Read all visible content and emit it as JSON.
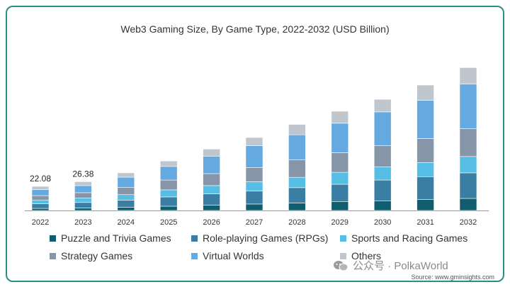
{
  "chart_data": {
    "type": "bar",
    "stacked": true,
    "title": "Web3 Gaming Size, By Game Type, 2022-2032 (USD Billion)",
    "xlabel": "",
    "ylabel": "",
    "ylim": [
      0,
      180
    ],
    "grid": false,
    "legend_position": "bottom",
    "categories": [
      "2022",
      "2023",
      "2024",
      "2025",
      "2026",
      "2027",
      "2028",
      "2029",
      "2030",
      "2031",
      "2032"
    ],
    "series": [
      {
        "name": "Puzzle and Trivia Games",
        "color": "#0f5d6e",
        "values": [
          1.9,
          2.3,
          3.0,
          3.9,
          4.8,
          5.9,
          6.9,
          8.0,
          8.9,
          10.0,
          11.0
        ]
      },
      {
        "name": "Role-playing Games (RPGs)",
        "color": "#3a7fa3",
        "values": [
          4.2,
          5.0,
          6.5,
          8.5,
          10.5,
          12.0,
          14.0,
          16.0,
          19.0,
          21.0,
          23.5
        ]
      },
      {
        "name": "Sports and Racing Games",
        "color": "#56bde4",
        "values": [
          3.5,
          4.0,
          5.0,
          6.5,
          7.5,
          8.5,
          9.5,
          11.0,
          12.0,
          13.0,
          15.0
        ]
      },
      {
        "name": "Strategy Games",
        "color": "#8795a8",
        "values": [
          4.0,
          5.0,
          6.5,
          9.0,
          11.0,
          13.0,
          16.0,
          18.0,
          19.5,
          22.0,
          25.5
        ]
      },
      {
        "name": "Virtual Worlds",
        "color": "#64a9e0",
        "values": [
          5.5,
          6.5,
          9.5,
          12.5,
          16.0,
          20.0,
          23.0,
          27.0,
          31.0,
          35.0,
          41.0
        ]
      },
      {
        "name": "Others",
        "color": "#bfc6ce",
        "values": [
          2.98,
          3.58,
          4.0,
          5.0,
          6.5,
          7.5,
          9.5,
          11.0,
          11.5,
          14.0,
          15.0
        ]
      }
    ],
    "data_labels": [
      {
        "category": "2022",
        "text": "22.08"
      },
      {
        "category": "2023",
        "text": "26.38"
      }
    ]
  },
  "watermark": {
    "text": "公众号 · PolkaWorld"
  },
  "source": "Source: www.gminsights.com"
}
